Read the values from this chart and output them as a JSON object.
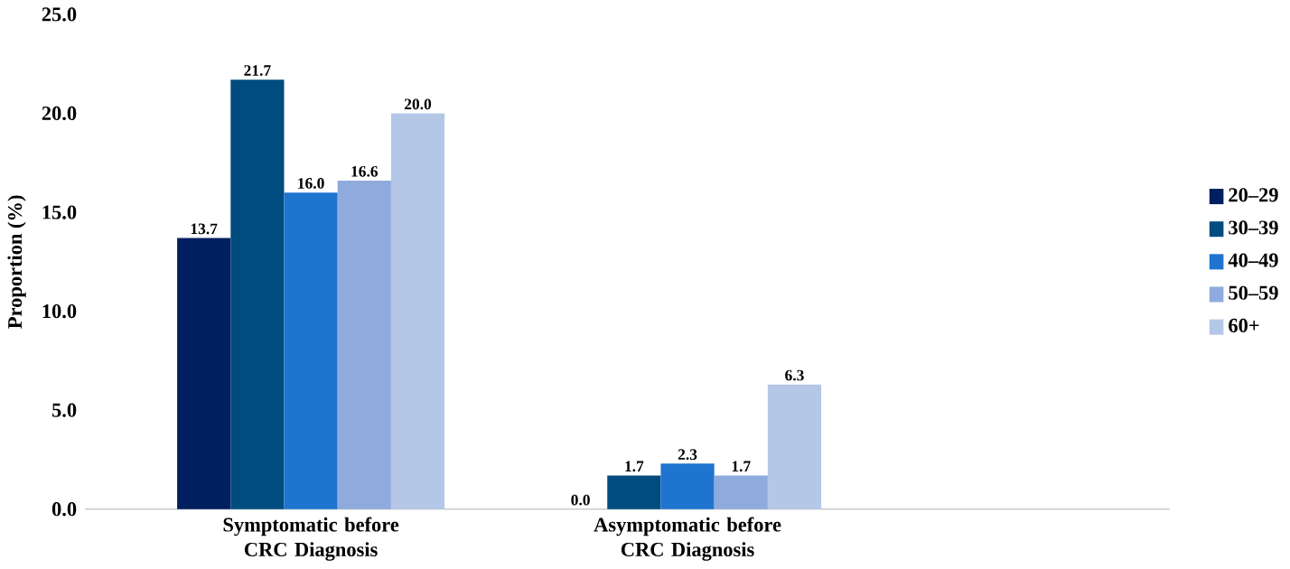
{
  "chart_data": {
    "type": "bar",
    "ylabel": "Proportion (%)",
    "categories": [
      "Symptomatic before CRC Diagnosis",
      "Asymptomatic before CRC Diagnosis"
    ],
    "series": [
      {
        "name": "20–29",
        "color": "#001f5f",
        "values": [
          13.7,
          0.0
        ]
      },
      {
        "name": "30–39",
        "color": "#004c7f",
        "values": [
          21.7,
          1.7
        ]
      },
      {
        "name": "40–49",
        "color": "#1f74d0",
        "values": [
          16.0,
          2.3
        ]
      },
      {
        "name": "50–59",
        "color": "#8faadc",
        "values": [
          16.6,
          1.7
        ]
      },
      {
        "name": "60+",
        "color": "#b4c7e7",
        "values": [
          20.0,
          6.3
        ]
      }
    ],
    "ylim": [
      0,
      25
    ],
    "yticks": [
      {
        "value": 0,
        "label": "0.0"
      },
      {
        "value": 5,
        "label": "5.0"
      },
      {
        "value": 10,
        "label": "10.0"
      },
      {
        "value": 15,
        "label": "15.0"
      },
      {
        "value": 20,
        "label": "20.0"
      },
      {
        "value": 25,
        "label": "25.0"
      }
    ],
    "value_labels": [
      [
        "13.7",
        "0.0"
      ],
      [
        "21.7",
        "1.7"
      ],
      [
        "16.0",
        "2.3"
      ],
      [
        "16.6",
        "1.7"
      ],
      [
        "20.0",
        "6.3"
      ]
    ],
    "grid": false,
    "legend": "right"
  }
}
